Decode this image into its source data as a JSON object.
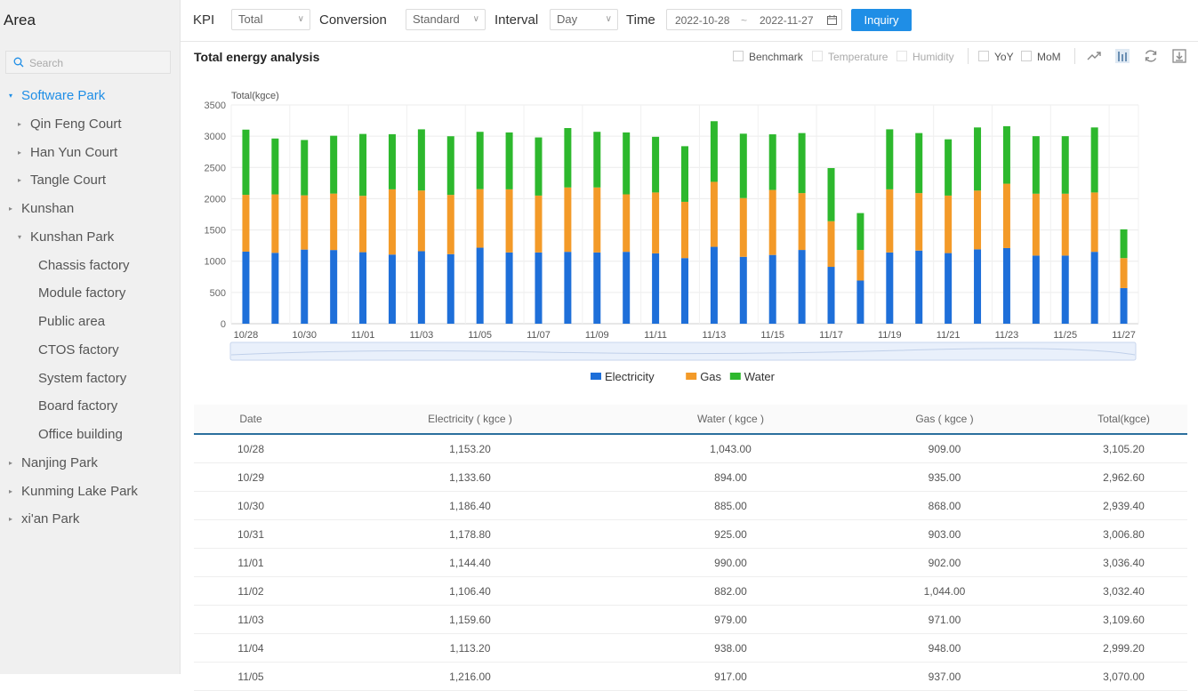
{
  "sidebar": {
    "title": "Area",
    "search_placeholder": "Search",
    "items": [
      {
        "label": "Software Park",
        "level": 0,
        "expanded": true,
        "active": true
      },
      {
        "label": "Qin Feng Court",
        "level": 1,
        "expanded": false
      },
      {
        "label": "Han Yun Court",
        "level": 1,
        "expanded": false
      },
      {
        "label": "Tangle Court",
        "level": 1,
        "expanded": false
      },
      {
        "label": "Kunshan",
        "level": 0,
        "expanded": false
      },
      {
        "label": "Kunshan Park",
        "level": 1,
        "expanded": true
      },
      {
        "label": "Chassis factory",
        "level": 2
      },
      {
        "label": "Module factory",
        "level": 2
      },
      {
        "label": "Public area",
        "level": 2
      },
      {
        "label": "CTOS factory",
        "level": 2
      },
      {
        "label": "System factory",
        "level": 2
      },
      {
        "label": "Board factory",
        "level": 2
      },
      {
        "label": "Office building",
        "level": 2
      },
      {
        "label": "Nanjing Park",
        "level": 0,
        "expanded": false
      },
      {
        "label": "Kunming Lake Park",
        "level": 0,
        "expanded": false
      },
      {
        "label": "xi'an Park",
        "level": 0,
        "expanded": false
      }
    ]
  },
  "toolbar": {
    "kpi_label": "KPI",
    "kpi_value": "Total",
    "conversion_label": "Conversion",
    "conversion_value": "Standard",
    "interval_label": "Interval",
    "interval_value": "Day",
    "time_label": "Time",
    "date_start": "2022-10-28",
    "date_end": "2022-11-27",
    "date_sep": "~",
    "inquiry_label": "Inquiry"
  },
  "panel": {
    "title": "Total energy analysis",
    "options": [
      {
        "label": "Benchmark",
        "disabled": false
      },
      {
        "label": "Temperature",
        "disabled": true
      },
      {
        "label": "Humidity",
        "disabled": true
      },
      {
        "label": "YoY",
        "disabled": false
      },
      {
        "label": "MoM",
        "disabled": false
      }
    ],
    "tools": [
      "line-chart-icon",
      "bar-chart-icon",
      "refresh-icon",
      "download-icon"
    ]
  },
  "colors": {
    "accent": "#1f8ee6",
    "electricity": "#1e6fd9",
    "gas": "#f39a28",
    "water": "#2db82d"
  },
  "chart_data": {
    "type": "bar",
    "stacked": true,
    "ylabel": "Total(kgce)",
    "ylim": [
      0,
      3500
    ],
    "yticks": [
      0,
      500,
      1000,
      1500,
      2000,
      2500,
      3000,
      3500
    ],
    "categories": [
      "10/28",
      "10/29",
      "10/30",
      "10/31",
      "11/01",
      "11/02",
      "11/03",
      "11/04",
      "11/05",
      "11/06",
      "11/07",
      "11/08",
      "11/09",
      "11/10",
      "11/11",
      "11/12",
      "11/13",
      "11/14",
      "11/15",
      "11/16",
      "11/17",
      "11/18",
      "11/19",
      "11/20",
      "11/21",
      "11/22",
      "11/23",
      "11/24",
      "11/25",
      "11/26",
      "11/27"
    ],
    "xtick_labels": [
      "10/28",
      "10/30",
      "11/01",
      "11/03",
      "11/05",
      "11/07",
      "11/09",
      "11/11",
      "11/13",
      "11/15",
      "11/17",
      "11/19",
      "11/21",
      "11/23",
      "11/25",
      "11/27"
    ],
    "series": [
      {
        "name": "Electricity",
        "values": [
          1153,
          1134,
          1186,
          1179,
          1144,
          1106,
          1160,
          1113,
          1216,
          1140,
          1140,
          1150,
          1140,
          1150,
          1125,
          1050,
          1230,
          1070,
          1100,
          1180,
          910,
          690,
          1140,
          1170,
          1130,
          1190,
          1210,
          1090,
          1090,
          1150,
          570
        ]
      },
      {
        "name": "Gas",
        "values": [
          909,
          935,
          868,
          903,
          902,
          1044,
          971,
          948,
          937,
          1010,
          910,
          1030,
          1040,
          920,
          975,
          900,
          1040,
          940,
          1040,
          910,
          730,
          490,
          1010,
          920,
          920,
          940,
          1030,
          990,
          990,
          950,
          480
        ]
      },
      {
        "name": "Water",
        "values": [
          1043,
          894,
          885,
          925,
          990,
          882,
          979,
          938,
          917,
          910,
          930,
          950,
          890,
          990,
          890,
          890,
          970,
          1030,
          890,
          960,
          850,
          590,
          960,
          960,
          900,
          1010,
          920,
          920,
          920,
          1040,
          460
        ]
      }
    ],
    "legend": [
      "Electricity",
      "Gas",
      "Water"
    ],
    "legend_position": "bottom"
  },
  "table": {
    "headers": [
      "Date",
      "Electricity ( kgce )",
      "Water ( kgce )",
      "Gas ( kgce )",
      "Total(kgce)"
    ],
    "rows": [
      [
        "10/28",
        "1,153.20",
        "1,043.00",
        "909.00",
        "3,105.20"
      ],
      [
        "10/29",
        "1,133.60",
        "894.00",
        "935.00",
        "2,962.60"
      ],
      [
        "10/30",
        "1,186.40",
        "885.00",
        "868.00",
        "2,939.40"
      ],
      [
        "10/31",
        "1,178.80",
        "925.00",
        "903.00",
        "3,006.80"
      ],
      [
        "11/01",
        "1,144.40",
        "990.00",
        "902.00",
        "3,036.40"
      ],
      [
        "11/02",
        "1,106.40",
        "882.00",
        "1,044.00",
        "3,032.40"
      ],
      [
        "11/03",
        "1,159.60",
        "979.00",
        "971.00",
        "3,109.60"
      ],
      [
        "11/04",
        "1,113.20",
        "938.00",
        "948.00",
        "2,999.20"
      ],
      [
        "11/05",
        "1,216.00",
        "917.00",
        "937.00",
        "3,070.00"
      ]
    ]
  }
}
